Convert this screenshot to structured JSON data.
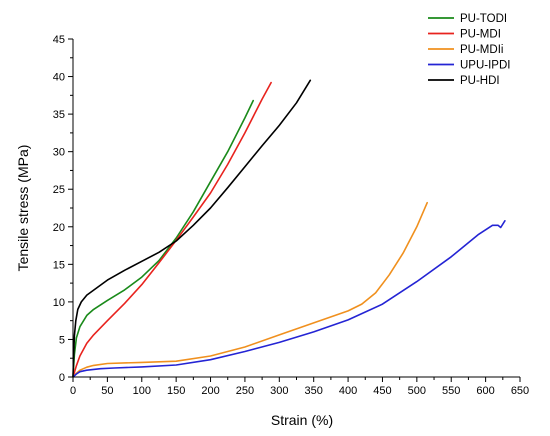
{
  "chart_data": {
    "type": "line",
    "xlabel": "Strain (%)",
    "ylabel": "Tensile stress (MPa)",
    "xlim": [
      0,
      650
    ],
    "ylim": [
      0,
      45
    ],
    "xticks": [
      0,
      50,
      100,
      150,
      200,
      250,
      300,
      350,
      400,
      450,
      500,
      550,
      600,
      650
    ],
    "yticks": [
      0,
      5,
      10,
      15,
      20,
      25,
      30,
      35,
      40,
      45
    ],
    "grid": false,
    "legend": "top-right",
    "series": [
      {
        "name": "PU-TODI",
        "color": "#1a8a1a",
        "points": [
          [
            0,
            0
          ],
          [
            2,
            3
          ],
          [
            5,
            5.2
          ],
          [
            10,
            6.7
          ],
          [
            20,
            8.2
          ],
          [
            30,
            9
          ],
          [
            50,
            10.2
          ],
          [
            75,
            11.6
          ],
          [
            100,
            13.3
          ],
          [
            125,
            15.5
          ],
          [
            150,
            18.5
          ],
          [
            175,
            22
          ],
          [
            200,
            26
          ],
          [
            225,
            30
          ],
          [
            250,
            34.5
          ],
          [
            262,
            36.8
          ]
        ]
      },
      {
        "name": "PU-MDI",
        "color": "#e8231e",
        "points": [
          [
            0,
            0
          ],
          [
            5,
            1.5
          ],
          [
            10,
            2.8
          ],
          [
            20,
            4.5
          ],
          [
            30,
            5.6
          ],
          [
            50,
            7.5
          ],
          [
            75,
            9.8
          ],
          [
            100,
            12.3
          ],
          [
            125,
            15.2
          ],
          [
            150,
            18.2
          ],
          [
            175,
            21.3
          ],
          [
            200,
            24.5
          ],
          [
            225,
            28.3
          ],
          [
            250,
            32.5
          ],
          [
            275,
            37
          ],
          [
            288,
            39.2
          ]
        ]
      },
      {
        "name": "PU-MDIi",
        "color": "#f0901e",
        "points": [
          [
            0,
            0
          ],
          [
            5,
            0.5
          ],
          [
            10,
            0.9
          ],
          [
            20,
            1.3
          ],
          [
            30,
            1.55
          ],
          [
            50,
            1.8
          ],
          [
            100,
            1.95
          ],
          [
            150,
            2.1
          ],
          [
            200,
            2.8
          ],
          [
            250,
            4
          ],
          [
            300,
            5.6
          ],
          [
            350,
            7.2
          ],
          [
            400,
            8.8
          ],
          [
            420,
            9.7
          ],
          [
            440,
            11.2
          ],
          [
            460,
            13.6
          ],
          [
            480,
            16.5
          ],
          [
            500,
            20
          ],
          [
            515,
            23.2
          ]
        ]
      },
      {
        "name": "UPU-IPDI",
        "color": "#2424d4",
        "points": [
          [
            0,
            0
          ],
          [
            5,
            0.4
          ],
          [
            10,
            0.7
          ],
          [
            20,
            0.9
          ],
          [
            40,
            1.1
          ],
          [
            60,
            1.2
          ],
          [
            100,
            1.35
          ],
          [
            150,
            1.6
          ],
          [
            200,
            2.3
          ],
          [
            250,
            3.4
          ],
          [
            300,
            4.6
          ],
          [
            350,
            6
          ],
          [
            400,
            7.6
          ],
          [
            450,
            9.7
          ],
          [
            500,
            12.7
          ],
          [
            550,
            16
          ],
          [
            590,
            19
          ],
          [
            610,
            20.2
          ],
          [
            618,
            20.2
          ],
          [
            622,
            19.9
          ],
          [
            628,
            20.8
          ]
        ]
      },
      {
        "name": "PU-HDI",
        "color": "#000000",
        "points": [
          [
            0,
            0
          ],
          [
            1,
            3
          ],
          [
            2,
            5.5
          ],
          [
            4,
            7.5
          ],
          [
            7,
            9
          ],
          [
            12,
            10
          ],
          [
            20,
            10.9
          ],
          [
            35,
            11.9
          ],
          [
            50,
            12.9
          ],
          [
            75,
            14.2
          ],
          [
            100,
            15.4
          ],
          [
            125,
            16.6
          ],
          [
            150,
            18.1
          ],
          [
            175,
            20.2
          ],
          [
            200,
            22.5
          ],
          [
            225,
            25.2
          ],
          [
            250,
            28
          ],
          [
            275,
            30.8
          ],
          [
            300,
            33.5
          ],
          [
            325,
            36.5
          ],
          [
            345,
            39.5
          ]
        ]
      }
    ]
  }
}
